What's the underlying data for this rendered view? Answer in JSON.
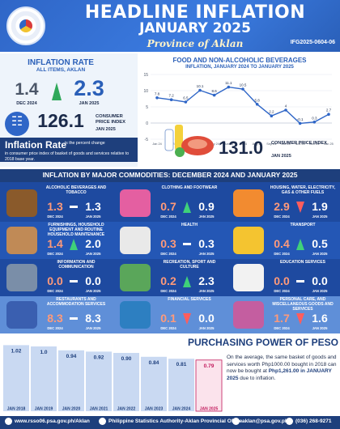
{
  "header": {
    "title": "HEADLINE INFLATION",
    "subtitle": "JANUARY 2025",
    "province": "Province of Aklan",
    "code": "IFG2025-0604-06"
  },
  "inflation_rate": {
    "title": "INFLATION RATE",
    "subtitle": "ALL ITEMS, AKLAN",
    "prev_value": "1.4",
    "prev_label": "DEC 2024",
    "cur_value": "2.3",
    "cur_label": "JAN 2025"
  },
  "cpi": {
    "value": "126.1",
    "label": "CONSUMER PRICE INDEX",
    "month": "JAN 2025"
  },
  "definition": {
    "word": "Inflation Rate",
    "text1": "is the percent change",
    "text2": "in consumer price index of basket of goods and services relative to 2018 base year."
  },
  "food_chart": {
    "title": "FOOD AND NON-ALCOHOLIC BEVERAGES",
    "subtitle": "INFLATION, JANUARY 2024 TO JANUARY 2025",
    "cpi_value": "131.0",
    "cpi_label": "CONSUMER PRICE INDEX",
    "cpi_month": "JAN 2025"
  },
  "chart_data": {
    "type": "line",
    "x": [
      "Jan 24",
      "Feb 24",
      "Mar 24",
      "Apr 24",
      "May 24",
      "Jun 24",
      "Jul 24",
      "Aug 24",
      "Sep 24",
      "Oct 24",
      "Nov 24",
      "Dec 24",
      "Jan 25"
    ],
    "values": [
      7.8,
      7.2,
      6.5,
      10.1,
      8.6,
      11.1,
      10.5,
      5.8,
      2.2,
      4.0,
      -0.1,
      0.3,
      2.7
    ],
    "ylim": [
      -5,
      15
    ],
    "yticks": [
      -5,
      0,
      5,
      10,
      15
    ],
    "color": "#2f66c7"
  },
  "section_title": "INFLATION BY MAJOR COMMODITIES: DECEMBER 2024 AND JANUARY 2025",
  "commodities": [
    {
      "label": "ALCOHOLIC BEVERAGES AND TOBACCO",
      "prev": "1.3",
      "cur": "1.3",
      "trend": "same",
      "icon": "beer-mugs-icon"
    },
    {
      "label": "CLOTHING AND FOOTWEAR",
      "prev": "0.7",
      "cur": "0.9",
      "trend": "up",
      "icon": "shirt-icon"
    },
    {
      "label": "HOUSING, WATER, ELECTRICITY, GAS & OTHER FUELS",
      "prev": "2.9",
      "cur": "1.9",
      "trend": "down",
      "icon": "house-icon"
    },
    {
      "label": "FURNISHINGS, HOUSEHOLD EQUIPMENT AND ROUTINE HOUSEHOLD MAINTENANCE",
      "prev": "1.4",
      "cur": "2.0",
      "trend": "up",
      "icon": "sofa-icon"
    },
    {
      "label": "HEALTH",
      "prev": "0.3",
      "cur": "0.3",
      "trend": "same",
      "icon": "medicine-icon"
    },
    {
      "label": "TRANSPORT",
      "prev": "0.4",
      "cur": "0.5",
      "trend": "up",
      "icon": "taxi-icon"
    },
    {
      "label": "INFORMATION AND COMMUNICATION",
      "prev": "0.0",
      "cur": "0.0",
      "trend": "same",
      "icon": "phone-icon"
    },
    {
      "label": "RECREATION, SPORT AND CULTURE",
      "prev": "0.2",
      "cur": "2.3",
      "trend": "up",
      "icon": "plants-icon"
    },
    {
      "label": "EDUCATION SERVICES",
      "prev": "0.0",
      "cur": "0.0",
      "trend": "same",
      "icon": "graduation-icon"
    },
    {
      "label": "RESTAURANTS AND ACCOMMODATION SERVICES",
      "prev": "8.3",
      "cur": "8.3",
      "trend": "same",
      "icon": "hotel-icon"
    },
    {
      "label": "FINANCIAL SERVICES",
      "prev": "0.1",
      "cur": "0.0",
      "trend": "down",
      "icon": "finance-icon"
    },
    {
      "label": "PERSONAL CARE, AND MISCELLANEOUS GOODS AND SERVICES",
      "prev": "1.7",
      "cur": "1.6",
      "trend": "down",
      "icon": "personal-care-icon"
    }
  ],
  "months": {
    "prev": "DEC 2024",
    "cur": "JAN 2025"
  },
  "purchasing_power": {
    "title": "PURCHASING POWER OF PESO",
    "text_a": "On the average, the same basket of goods and services worth Php1000.00 bought in 2018 can now be bought at ",
    "text_b": "Php1,261.00 in JANUARY 2025",
    "text_c": " due to inflation.",
    "chart_data": {
      "type": "bar",
      "categories": [
        "JAN 2018",
        "JAN 2019",
        "JAN 2020",
        "JAN 2021",
        "JAN 2022",
        "JAN 2023",
        "JAN 2024",
        "JAN 2025"
      ],
      "values": [
        1.02,
        1.0,
        0.94,
        0.92,
        0.9,
        0.84,
        0.81,
        0.79
      ],
      "value_labels": [
        "1.02",
        "1.0",
        "0.94",
        "0.92",
        "0.90",
        "0.84",
        "0.81",
        "0.79"
      ],
      "highlight": "#c2185b",
      "color": "#c9d9f2"
    }
  },
  "footer": {
    "website": "www.rsso06.psa.gov.ph/Aklan",
    "facebook": "Philippine Statistics Authority-Aklan Provincial Office",
    "email": "aklan@psa.gov.ph",
    "phone": "(036) 268-9271"
  }
}
